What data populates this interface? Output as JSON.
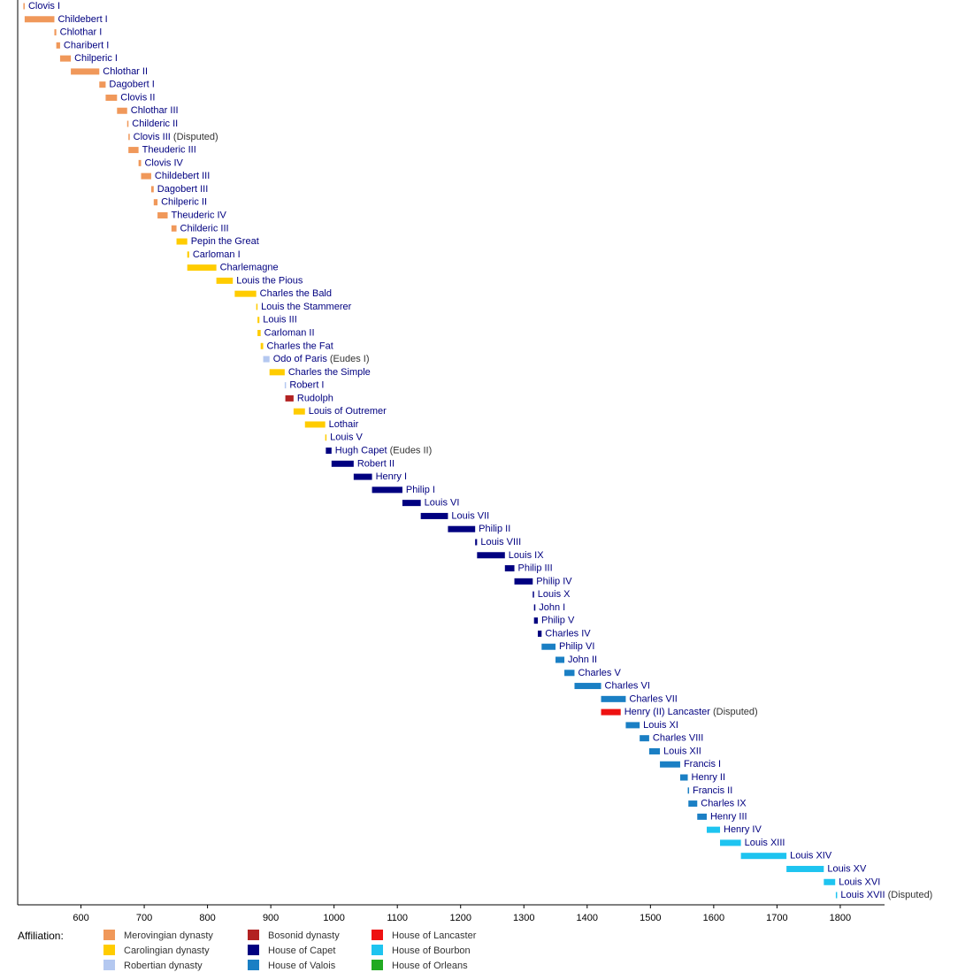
{
  "chart_data": {
    "type": "timeline",
    "xlim": [
      500,
      1870
    ],
    "xticks": [
      600,
      700,
      800,
      900,
      1000,
      1100,
      1200,
      1300,
      1400,
      1500,
      1600,
      1700,
      1800
    ],
    "legend_title": "Affiliation:",
    "affiliations": [
      {
        "name": "Merovingian dynasty",
        "color": "#f0985a"
      },
      {
        "name": "Carolingian dynasty",
        "color": "#ffcc00"
      },
      {
        "name": "Robertian dynasty",
        "color": "#b4c8f0"
      },
      {
        "name": "Bosonid dynasty",
        "color": "#b22222"
      },
      {
        "name": "House of Capet",
        "color": "#000080"
      },
      {
        "name": "House of Valois",
        "color": "#1a7fc4"
      },
      {
        "name": "House of Lancaster",
        "color": "#ee1111"
      },
      {
        "name": "House of Bourbon",
        "color": "#1ec4f0"
      },
      {
        "name": "House of Orleans",
        "color": "#22aa22"
      }
    ],
    "rows": [
      {
        "name": "Clovis I",
        "start": 509,
        "end": 511,
        "color": "#f0985a"
      },
      {
        "name": "Childebert I",
        "start": 511,
        "end": 558,
        "color": "#f0985a"
      },
      {
        "name": "Chlothar I",
        "start": 558,
        "end": 561,
        "color": "#f0985a"
      },
      {
        "name": "Charibert I",
        "start": 561,
        "end": 567,
        "color": "#f0985a"
      },
      {
        "name": "Chilperic I",
        "start": 567,
        "end": 584,
        "color": "#f0985a"
      },
      {
        "name": "Chlothar II",
        "start": 584,
        "end": 629,
        "color": "#f0985a"
      },
      {
        "name": "Dagobert I",
        "start": 629,
        "end": 639,
        "color": "#f0985a"
      },
      {
        "name": "Clovis II",
        "start": 639,
        "end": 657,
        "color": "#f0985a"
      },
      {
        "name": "Chlothar III",
        "start": 657,
        "end": 673,
        "color": "#f0985a"
      },
      {
        "name": "Childeric II",
        "start": 673,
        "end": 675,
        "color": "#f0985a"
      },
      {
        "name": "Clovis III",
        "note": "(Disputed)",
        "start": 675,
        "end": 676,
        "color": "#f0985a"
      },
      {
        "name": "Theuderic III",
        "start": 675,
        "end": 691,
        "color": "#f0985a"
      },
      {
        "name": "Clovis IV",
        "start": 691,
        "end": 695,
        "color": "#f0985a"
      },
      {
        "name": "Childebert III",
        "start": 695,
        "end": 711,
        "color": "#f0985a"
      },
      {
        "name": "Dagobert III",
        "start": 711,
        "end": 715,
        "color": "#f0985a"
      },
      {
        "name": "Chilperic II",
        "start": 715,
        "end": 721,
        "color": "#f0985a"
      },
      {
        "name": "Theuderic IV",
        "start": 721,
        "end": 737,
        "color": "#f0985a"
      },
      {
        "name": "Childeric III",
        "start": 743,
        "end": 751,
        "color": "#f0985a"
      },
      {
        "name": "Pepin the Great",
        "start": 751,
        "end": 768,
        "color": "#ffcc00"
      },
      {
        "name": "Carloman I",
        "start": 768,
        "end": 771,
        "color": "#ffcc00"
      },
      {
        "name": "Charlemagne",
        "start": 768,
        "end": 814,
        "color": "#ffcc00"
      },
      {
        "name": "Louis the Pious",
        "start": 814,
        "end": 840,
        "color": "#ffcc00"
      },
      {
        "name": "Charles the Bald",
        "start": 843,
        "end": 877,
        "color": "#ffcc00"
      },
      {
        "name": "Louis the Stammerer",
        "start": 877,
        "end": 879,
        "color": "#ffcc00"
      },
      {
        "name": "Louis III",
        "start": 879,
        "end": 882,
        "color": "#ffcc00"
      },
      {
        "name": "Carloman II",
        "start": 879,
        "end": 884,
        "color": "#ffcc00"
      },
      {
        "name": "Charles the Fat",
        "start": 884,
        "end": 888,
        "color": "#ffcc00"
      },
      {
        "name": "Odo of Paris",
        "note": "(Eudes I)",
        "start": 888,
        "end": 898,
        "color": "#b4c8f0"
      },
      {
        "name": "Charles the Simple",
        "start": 898,
        "end": 922,
        "color": "#ffcc00"
      },
      {
        "name": "Robert I",
        "start": 922,
        "end": 923,
        "color": "#b4c8f0"
      },
      {
        "name": "Rudolph",
        "start": 923,
        "end": 936,
        "color": "#b22222"
      },
      {
        "name": "Louis of Outremer",
        "start": 936,
        "end": 954,
        "color": "#ffcc00"
      },
      {
        "name": "Lothair",
        "start": 954,
        "end": 986,
        "color": "#ffcc00"
      },
      {
        "name": "Louis V",
        "start": 986,
        "end": 987,
        "color": "#ffcc00"
      },
      {
        "name": "Hugh Capet",
        "note": "(Eudes II)",
        "start": 987,
        "end": 996,
        "color": "#000080"
      },
      {
        "name": "Robert II",
        "start": 996,
        "end": 1031,
        "color": "#000080"
      },
      {
        "name": "Henry I",
        "start": 1031,
        "end": 1060,
        "color": "#000080"
      },
      {
        "name": "Philip I",
        "start": 1060,
        "end": 1108,
        "color": "#000080"
      },
      {
        "name": "Louis VI",
        "start": 1108,
        "end": 1137,
        "color": "#000080"
      },
      {
        "name": "Louis VII",
        "start": 1137,
        "end": 1180,
        "color": "#000080"
      },
      {
        "name": "Philip II",
        "start": 1180,
        "end": 1223,
        "color": "#000080"
      },
      {
        "name": "Louis VIII",
        "start": 1223,
        "end": 1226,
        "color": "#000080"
      },
      {
        "name": "Louis IX",
        "start": 1226,
        "end": 1270,
        "color": "#000080"
      },
      {
        "name": "Philip III",
        "start": 1270,
        "end": 1285,
        "color": "#000080"
      },
      {
        "name": "Philip IV",
        "start": 1285,
        "end": 1314,
        "color": "#000080"
      },
      {
        "name": "Louis X",
        "start": 1314,
        "end": 1316,
        "color": "#000080"
      },
      {
        "name": "John I",
        "start": 1316,
        "end": 1317,
        "color": "#000080"
      },
      {
        "name": "Philip V",
        "start": 1316,
        "end": 1322,
        "color": "#000080"
      },
      {
        "name": "Charles IV",
        "start": 1322,
        "end": 1328,
        "color": "#000080"
      },
      {
        "name": "Philip VI",
        "start": 1328,
        "end": 1350,
        "color": "#1a7fc4"
      },
      {
        "name": "John II",
        "start": 1350,
        "end": 1364,
        "color": "#1a7fc4"
      },
      {
        "name": "Charles V",
        "start": 1364,
        "end": 1380,
        "color": "#1a7fc4"
      },
      {
        "name": "Charles VI",
        "start": 1380,
        "end": 1422,
        "color": "#1a7fc4"
      },
      {
        "name": "Charles VII",
        "start": 1422,
        "end": 1461,
        "color": "#1a7fc4"
      },
      {
        "name": "Henry (II) Lancaster",
        "note": "(Disputed)",
        "start": 1422,
        "end": 1453,
        "color": "#ee1111"
      },
      {
        "name": "Louis XI",
        "start": 1461,
        "end": 1483,
        "color": "#1a7fc4"
      },
      {
        "name": "Charles VIII",
        "start": 1483,
        "end": 1498,
        "color": "#1a7fc4"
      },
      {
        "name": "Louis XII",
        "start": 1498,
        "end": 1515,
        "color": "#1a7fc4"
      },
      {
        "name": "Francis I",
        "start": 1515,
        "end": 1547,
        "color": "#1a7fc4"
      },
      {
        "name": "Henry II",
        "start": 1547,
        "end": 1559,
        "color": "#1a7fc4"
      },
      {
        "name": "Francis II",
        "start": 1559,
        "end": 1560,
        "color": "#1a7fc4"
      },
      {
        "name": "Charles IX",
        "start": 1560,
        "end": 1574,
        "color": "#1a7fc4"
      },
      {
        "name": "Henry III",
        "start": 1574,
        "end": 1589,
        "color": "#1a7fc4"
      },
      {
        "name": "Henry IV",
        "start": 1589,
        "end": 1610,
        "color": "#1ec4f0"
      },
      {
        "name": "Louis XIII",
        "start": 1610,
        "end": 1643,
        "color": "#1ec4f0"
      },
      {
        "name": "Louis XIV",
        "start": 1643,
        "end": 1715,
        "color": "#1ec4f0"
      },
      {
        "name": "Louis XV",
        "start": 1715,
        "end": 1774,
        "color": "#1ec4f0"
      },
      {
        "name": "Louis XVI",
        "start": 1774,
        "end": 1792,
        "color": "#1ec4f0"
      },
      {
        "name": "Louis XVII",
        "note": "(Disputed)",
        "start": 1793,
        "end": 1795,
        "color": "#1ec4f0"
      }
    ]
  }
}
